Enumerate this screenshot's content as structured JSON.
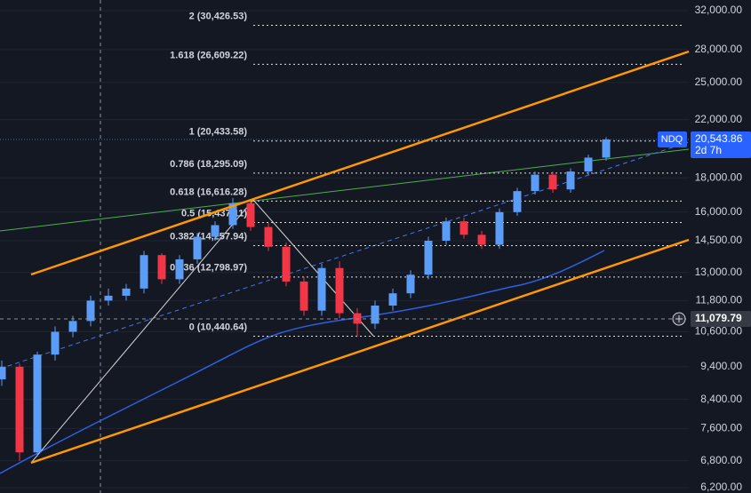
{
  "chart_data": {
    "type": "candlestick",
    "log_scale": true,
    "grid": true,
    "up_color": "#5b9cf6",
    "down_color": "#f23645",
    "open": [
      9000,
      9400,
      7000,
      9800,
      10600,
      11000,
      11800,
      12000,
      12300,
      13800,
      12700,
      13600,
      14700,
      15300,
      16500,
      15200,
      14200,
      12600,
      11400,
      13200,
      11300,
      10900,
      11600,
      12100,
      12900,
      14500,
      15500,
      14800,
      14300,
      16000,
      17200,
      18200,
      17300,
      18400,
      19300
    ],
    "high": [
      9600,
      9500,
      9900,
      10800,
      11200,
      12000,
      12300,
      12500,
      14000,
      13900,
      13800,
      14900,
      15500,
      16800,
      16700,
      15400,
      14400,
      12800,
      13400,
      13500,
      11500,
      11800,
      12300,
      13100,
      14700,
      15700,
      15700,
      15000,
      16200,
      17400,
      18400,
      18400,
      18600,
      19500,
      20700
    ],
    "low": [
      8800,
      6800,
      6900,
      9600,
      10400,
      10800,
      11600,
      11800,
      12100,
      12500,
      12500,
      13400,
      14500,
      15100,
      15000,
      14000,
      12400,
      11200,
      11200,
      11100,
      10440,
      10700,
      11400,
      11900,
      12700,
      14300,
      14600,
      14100,
      14100,
      15800,
      17000,
      17100,
      17100,
      18200,
      19100
    ],
    "close": [
      9400,
      7000,
      9800,
      10600,
      11000,
      11800,
      12000,
      12300,
      13800,
      12700,
      13600,
      14700,
      15300,
      16500,
      15200,
      14200,
      12600,
      11400,
      13200,
      11300,
      10900,
      11600,
      12100,
      12900,
      14500,
      15500,
      14800,
      14300,
      16000,
      17200,
      18200,
      17300,
      18400,
      19300,
      20543.86
    ],
    "ylim": [
      6087,
      33196
    ],
    "yticks": [
      {
        "value": 32000,
        "label": "32,000.00"
      },
      {
        "value": 28000,
        "label": "28,000.00"
      },
      {
        "value": 25000,
        "label": "25,000.00"
      },
      {
        "value": 22000,
        "label": "22,000.00"
      },
      {
        "value": 18000,
        "label": "18,000.00"
      },
      {
        "value": 16000,
        "label": "16,000.00"
      },
      {
        "value": 14500,
        "label": "14,500.00"
      },
      {
        "value": 13000,
        "label": "13,000.00"
      },
      {
        "value": 11800,
        "label": "11,800.00"
      },
      {
        "value": 10600,
        "label": "10,600.00"
      },
      {
        "value": 9400,
        "label": "9,400.00"
      },
      {
        "value": 8400,
        "label": "8,400.00"
      },
      {
        "value": 7600,
        "label": "7,600.00"
      },
      {
        "value": 6800,
        "label": "6,800.00"
      },
      {
        "value": 6200,
        "label": "6,200.00"
      }
    ],
    "fib_levels": [
      {
        "value": 30426.53,
        "label": "2 (30,426.53)"
      },
      {
        "value": 26609.22,
        "label": "1.618 (26,609.22)"
      },
      {
        "value": 20433.58,
        "label": "1 (20,433.58)"
      },
      {
        "value": 18295.09,
        "label": "0.786 (18,295.09)"
      },
      {
        "value": 16616.28,
        "label": "0.618 (16,616.28)"
      },
      {
        "value": 15437.11,
        "label": "0.5 (15,437.11)"
      },
      {
        "value": 14257.94,
        "label": "0.382 (14,257.94)"
      },
      {
        "value": 12798.97,
        "label": "0.236 (12,798.97)"
      },
      {
        "value": 10440.64,
        "label": "0 (10,440.64)"
      }
    ],
    "symbol": "NDQ",
    "last_price": {
      "value": 20543.86,
      "label": "20,543.86"
    },
    "countdown": "2d 7h",
    "crosshair_price": {
      "value": 11079.79,
      "label": "11,079.79"
    }
  }
}
